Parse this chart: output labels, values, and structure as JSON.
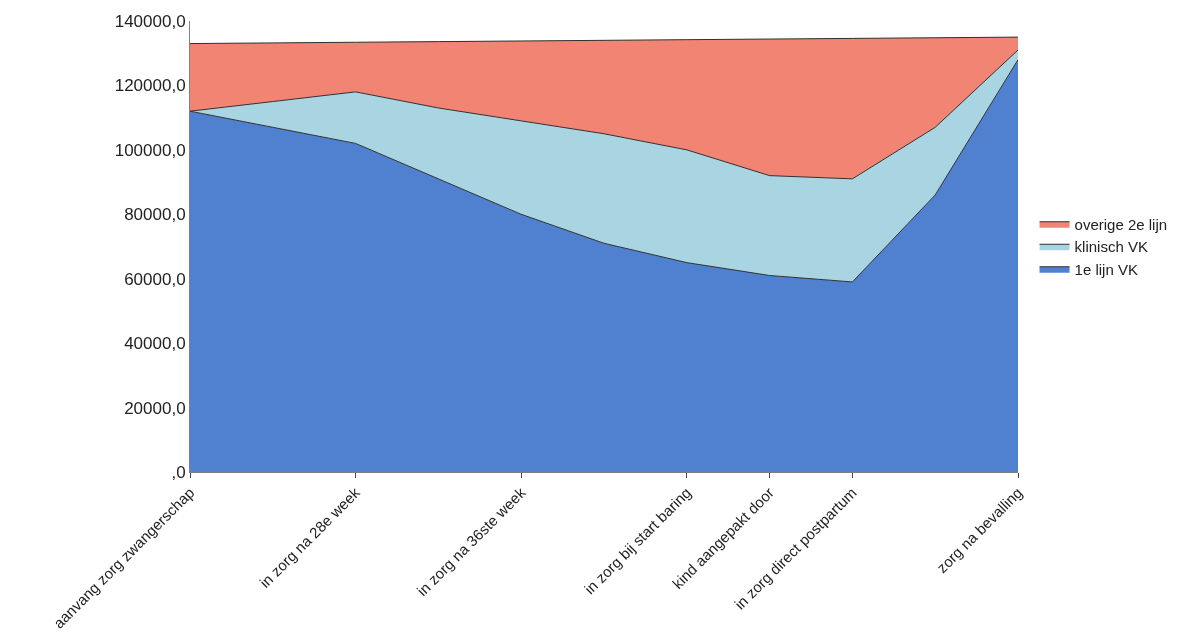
{
  "chart_data": {
    "type": "area",
    "stacked": true,
    "categories": [
      "aanvang zorg zwangerschap",
      null,
      "in zorg na 28e week",
      null,
      "in zorg na 36ste week",
      null,
      "in zorg bij start baring",
      "kind aangepakt door",
      "in zorg direct postpartum",
      null,
      "zorg na bevalling"
    ],
    "series": [
      {
        "name": "1e lijn VK",
        "color": "#4f81d0",
        "values": [
          112000,
          107000,
          102000,
          91000,
          80000,
          71000,
          65000,
          61000,
          59000,
          86000,
          128000
        ]
      },
      {
        "name": "klinisch VK",
        "color": "#a9d5e2",
        "values": [
          0,
          8000,
          16000,
          22000,
          29000,
          34000,
          35000,
          31000,
          32000,
          21000,
          3000
        ]
      },
      {
        "name": "overige 2e lijn",
        "color": "#f28474",
        "values": [
          21000,
          18200,
          15400,
          20600,
          24800,
          29000,
          34200,
          42400,
          43600,
          27800,
          4000
        ]
      }
    ],
    "ylim": [
      0,
      140000
    ],
    "yticks": [
      {
        "value": 0,
        "label": ",0"
      },
      {
        "value": 20000,
        "label": "20000,0"
      },
      {
        "value": 40000,
        "label": "40000,0"
      },
      {
        "value": 60000,
        "label": "60000,0"
      },
      {
        "value": 80000,
        "label": "80000,0"
      },
      {
        "value": 100000,
        "label": "100000,0"
      },
      {
        "value": 120000,
        "label": "120000,0"
      },
      {
        "value": 140000,
        "label": "140000,0"
      }
    ],
    "grid": "y",
    "legend": "right"
  }
}
